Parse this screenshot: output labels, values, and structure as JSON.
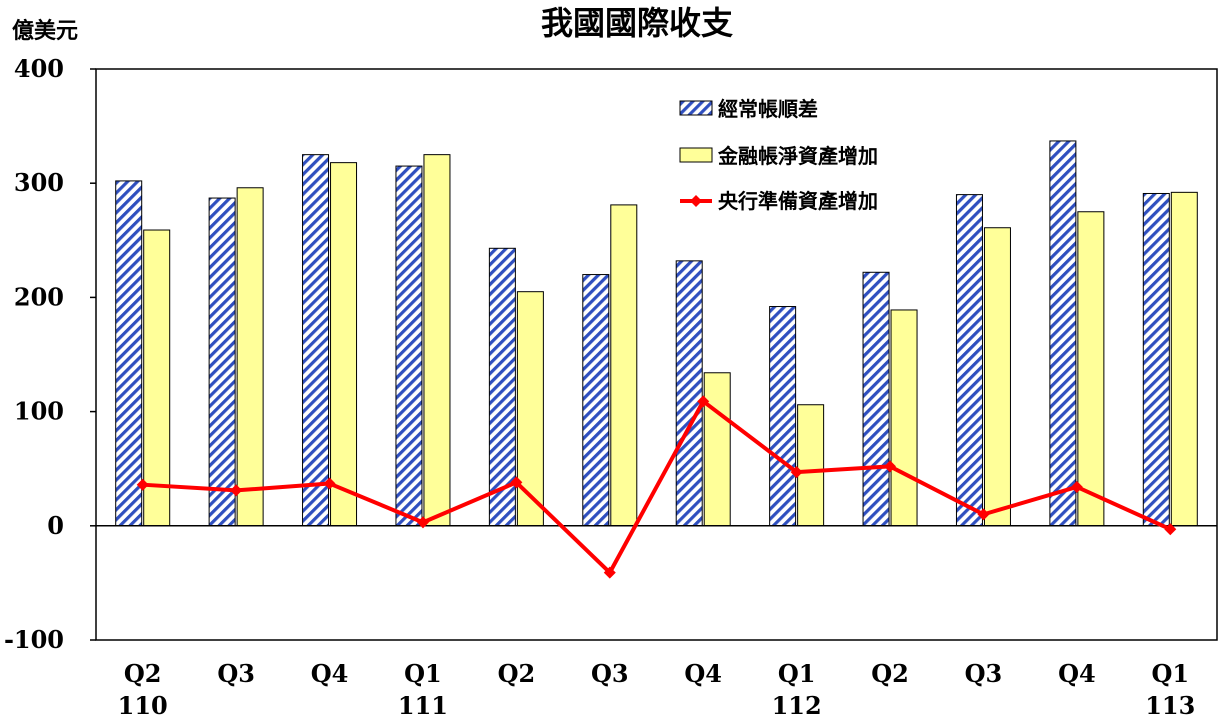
{
  "chart_data": {
    "type": "bar",
    "title": "我國國際收支",
    "ylabel": "億美元",
    "ylim": [
      -100,
      400
    ],
    "yticks": [
      -100,
      0,
      100,
      200,
      300,
      400
    ],
    "categories": [
      "Q2",
      "Q3",
      "Q4",
      "Q1",
      "Q2",
      "Q3",
      "Q4",
      "Q1",
      "Q2",
      "Q3",
      "Q4",
      "Q1"
    ],
    "years": [
      "110",
      "",
      "",
      "111",
      "",
      "",
      "",
      "112",
      "",
      "",
      "",
      "113"
    ],
    "series": [
      {
        "name": "經常帳順差",
        "type": "bar",
        "color": "#2f4fbf",
        "values": [
          302,
          287,
          325,
          315,
          243,
          220,
          232,
          192,
          222,
          290,
          337,
          291
        ]
      },
      {
        "name": "金融帳淨資產增加",
        "type": "bar",
        "color": "#ffff99",
        "values": [
          259,
          296,
          318,
          325,
          205,
          281,
          134,
          106,
          189,
          261,
          275,
          292
        ]
      },
      {
        "name": "央行準備資產增加",
        "type": "line",
        "color": "#ff0000",
        "values": [
          36,
          31,
          37,
          3,
          38,
          -41,
          109,
          47,
          52,
          10,
          34,
          -3
        ]
      }
    ],
    "grid": false,
    "legend": "top-right"
  }
}
